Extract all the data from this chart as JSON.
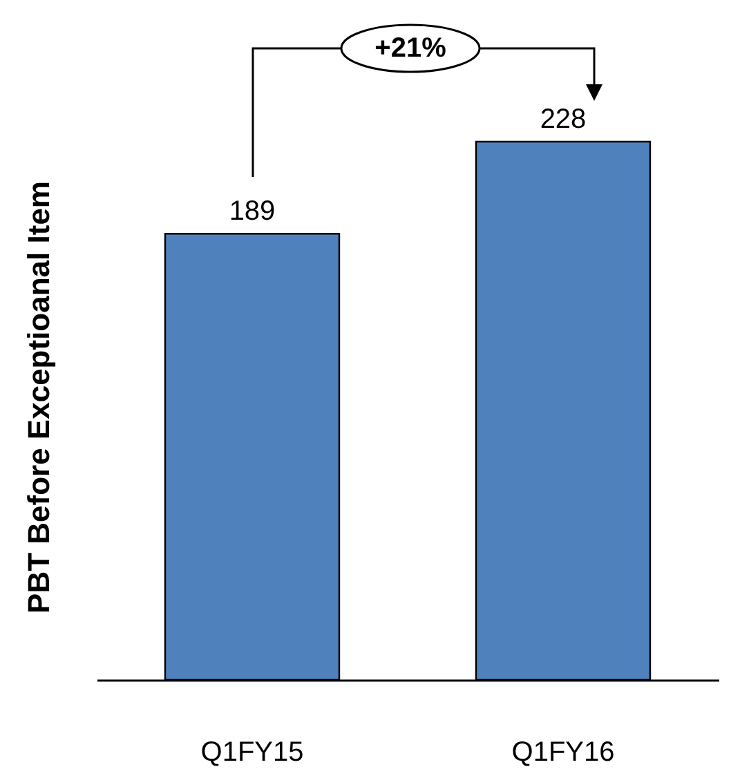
{
  "chart_data": {
    "type": "bar",
    "ylabel": "PBT Before Exceptioanal Item",
    "categories": [
      "Q1FY15",
      "Q1FY16"
    ],
    "values": [
      189,
      228
    ],
    "color": "#4f81bd",
    "data_labels": true,
    "annotations": [
      "+21%"
    ]
  }
}
